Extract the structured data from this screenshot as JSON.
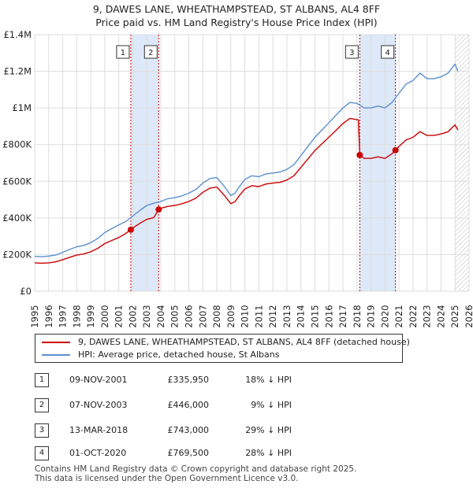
{
  "titles": {
    "line1": "9, DAWES LANE, WHEATHAMPSTEAD, ST ALBANS, AL4 8FF",
    "line2": "Price paid vs. HM Land Registry's House Price Index (HPI)"
  },
  "colors": {
    "property": "#cc0000",
    "hpi": "#5b8fd0",
    "band": "#dde8f8",
    "grid": "#dddddd",
    "hatch": "#bbbbbb"
  },
  "chart_data": {
    "type": "line",
    "title": "Price paid vs. HM Land Registry's House Price Index (HPI)",
    "xlim": [
      1995,
      2026
    ],
    "ylim": [
      0,
      1400000
    ],
    "x_ticks": [
      "1995",
      "1996",
      "1997",
      "1998",
      "1999",
      "2000",
      "2001",
      "2002",
      "2003",
      "2004",
      "2005",
      "2006",
      "2007",
      "2008",
      "2009",
      "2010",
      "2011",
      "2012",
      "2013",
      "2014",
      "2015",
      "2016",
      "2017",
      "2018",
      "2019",
      "2020",
      "2021",
      "2022",
      "2023",
      "2024",
      "2025",
      "2026"
    ],
    "y_ticks": [
      {
        "value": 0,
        "label": "£0"
      },
      {
        "value": 200000,
        "label": "£200K"
      },
      {
        "value": 400000,
        "label": "£400K"
      },
      {
        "value": 600000,
        "label": "£600K"
      },
      {
        "value": 800000,
        "label": "£800K"
      },
      {
        "value": 1000000,
        "label": "£1M"
      },
      {
        "value": 1200000,
        "label": "£1.2M"
      },
      {
        "value": 1400000,
        "label": "£1.4M"
      }
    ],
    "hatch_from": 2025.0,
    "bands": [
      [
        2001.86,
        2003.85
      ],
      [
        2018.2,
        2020.75
      ]
    ],
    "series": [
      {
        "name": "HPI: Average price, detached house, St Albans",
        "color": "#5b8fd0",
        "x": [
          1995,
          1995.5,
          1996,
          1996.5,
          1997,
          1997.5,
          1998,
          1998.5,
          1999,
          1999.5,
          2000,
          2000.5,
          2001,
          2001.5,
          2002,
          2002.5,
          2003,
          2003.5,
          2004,
          2004.5,
          2005,
          2005.5,
          2006,
          2006.5,
          2007,
          2007.5,
          2008,
          2008.5,
          2009,
          2009.3,
          2009.6,
          2010,
          2010.5,
          2011,
          2011.5,
          2012,
          2012.5,
          2013,
          2013.5,
          2014,
          2014.5,
          2015,
          2015.5,
          2016,
          2016.5,
          2017,
          2017.5,
          2018,
          2018.5,
          2019,
          2019.5,
          2020,
          2020.5,
          2021,
          2021.5,
          2022,
          2022.5,
          2023,
          2023.5,
          2024,
          2024.5,
          2025,
          2025.2
        ],
        "values": [
          190000,
          188000,
          192000,
          197000,
          212000,
          228000,
          242000,
          250000,
          265000,
          288000,
          320000,
          342000,
          362000,
          380000,
          410000,
          440000,
          468000,
          480000,
          490000,
          505000,
          510000,
          520000,
          535000,
          555000,
          590000,
          615000,
          620000,
          575000,
          522000,
          535000,
          570000,
          610000,
          630000,
          625000,
          640000,
          645000,
          650000,
          665000,
          690000,
          740000,
          790000,
          840000,
          880000,
          920000,
          960000,
          1000000,
          1030000,
          1025000,
          1000000,
          1000000,
          1010000,
          1000000,
          1030000,
          1080000,
          1130000,
          1150000,
          1190000,
          1160000,
          1160000,
          1170000,
          1190000,
          1240000,
          1200000
        ]
      },
      {
        "name": "9, DAWES LANE, WHEATHAMPSTEAD, ST ALBANS, AL4 8FF (detached house)",
        "color": "#cc0000",
        "x": [
          1995,
          1995.5,
          1996,
          1996.5,
          1997,
          1997.5,
          1998,
          1998.5,
          1999,
          1999.5,
          2000,
          2000.5,
          2001,
          2001.5,
          2001.86,
          2002,
          2002.5,
          2003,
          2003.5,
          2003.85,
          2004,
          2004.5,
          2005,
          2005.5,
          2006,
          2006.5,
          2007,
          2007.5,
          2008,
          2008.5,
          2009,
          2009.3,
          2009.6,
          2010,
          2010.5,
          2011,
          2011.5,
          2012,
          2012.5,
          2013,
          2013.5,
          2014,
          2014.5,
          2015,
          2015.5,
          2016,
          2016.5,
          2017,
          2017.5,
          2018.1,
          2018.2,
          2018.5,
          2019,
          2019.5,
          2020,
          2020.5,
          2020.75,
          2021,
          2021.5,
          2022,
          2022.5,
          2023,
          2023.5,
          2024,
          2024.5,
          2025,
          2025.2
        ],
        "values": [
          155000,
          153000,
          155000,
          160000,
          172000,
          185000,
          197000,
          203000,
          215000,
          234000,
          260000,
          277000,
          293000,
          315000,
          335950,
          345000,
          370000,
          392000,
          402000,
          446000,
          452000,
          463000,
          468000,
          477000,
          490000,
          507000,
          540000,
          562000,
          568000,
          526000,
          478000,
          489000,
          521000,
          558000,
          576000,
          571000,
          585000,
          590000,
          594000,
          607000,
          630000,
          676000,
          722000,
          768000,
          805000,
          841000,
          877000,
          915000,
          943000,
          935000,
          743000,
          725000,
          725000,
          733000,
          725000,
          750000,
          769500,
          790000,
          825000,
          840000,
          871000,
          850000,
          850000,
          858000,
          870000,
          908000,
          880000
        ]
      }
    ],
    "sales": [
      {
        "id": "1",
        "x": 2001.86,
        "value": 335950
      },
      {
        "id": "2",
        "x": 2003.85,
        "value": 446000
      },
      {
        "id": "3",
        "x": 2018.2,
        "value": 743000
      },
      {
        "id": "4",
        "x": 2020.75,
        "value": 769500
      }
    ],
    "marker_ids": [
      "1",
      "2",
      "3",
      "4"
    ]
  },
  "legend": {
    "property_label": "9, DAWES LANE, WHEATHAMPSTEAD, ST ALBANS, AL4 8FF (detached house)",
    "hpi_label": "HPI: Average price, detached house, St Albans"
  },
  "transactions": [
    {
      "id": "1",
      "date": "09-NOV-2001",
      "price": "£335,950",
      "hpi": "18% ↓ HPI"
    },
    {
      "id": "2",
      "date": "07-NOV-2003",
      "price": "£446,000",
      "hpi": "9% ↓ HPI"
    },
    {
      "id": "3",
      "date": "13-MAR-2018",
      "price": "£743,000",
      "hpi": "29% ↓ HPI"
    },
    {
      "id": "4",
      "date": "01-OCT-2020",
      "price": "£769,500",
      "hpi": "28% ↓ HPI"
    }
  ],
  "footer": {
    "line1": "Contains HM Land Registry data © Crown copyright and database right 2025.",
    "line2": "This data is licensed under the Open Government Licence v3.0."
  }
}
